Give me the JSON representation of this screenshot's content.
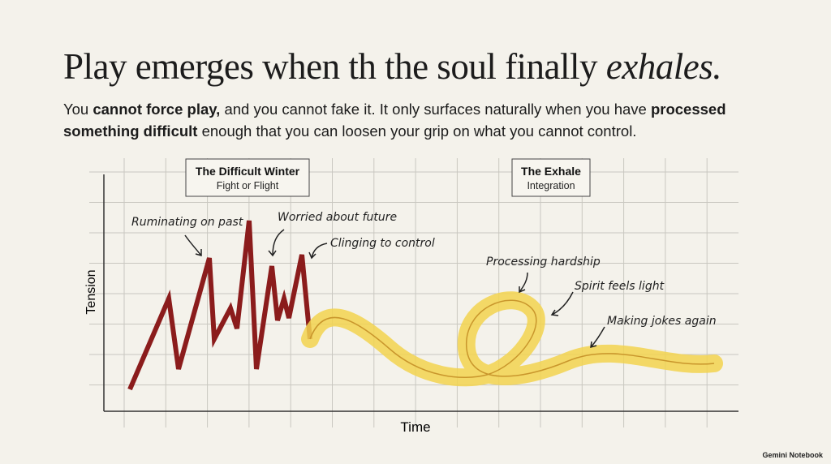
{
  "header": {
    "title_parts": [
      "Play emerges when th the soul finally ",
      "exhales."
    ],
    "body_parts": [
      "You ",
      "cannot force play,",
      " and you cannot fake it. It only surfaces naturally when you have ",
      "processed something difficult",
      " enough that you can loosen your grip on what you cannot control."
    ]
  },
  "diagram": {
    "phases": [
      {
        "title": "The Difficult Winter",
        "subtitle": "Fight or Flight"
      },
      {
        "title": "The Exhale",
        "subtitle": "Integration"
      }
    ],
    "annotations": [
      "Ruminating on past",
      "Worried about future",
      "Clinging to control",
      "Processing hardship",
      "Spirit feels light",
      "Making jokes again"
    ],
    "y_axis_label": "Tension",
    "x_axis_label": "Time"
  },
  "footer": {
    "brand": "Gemini Notebook"
  }
}
